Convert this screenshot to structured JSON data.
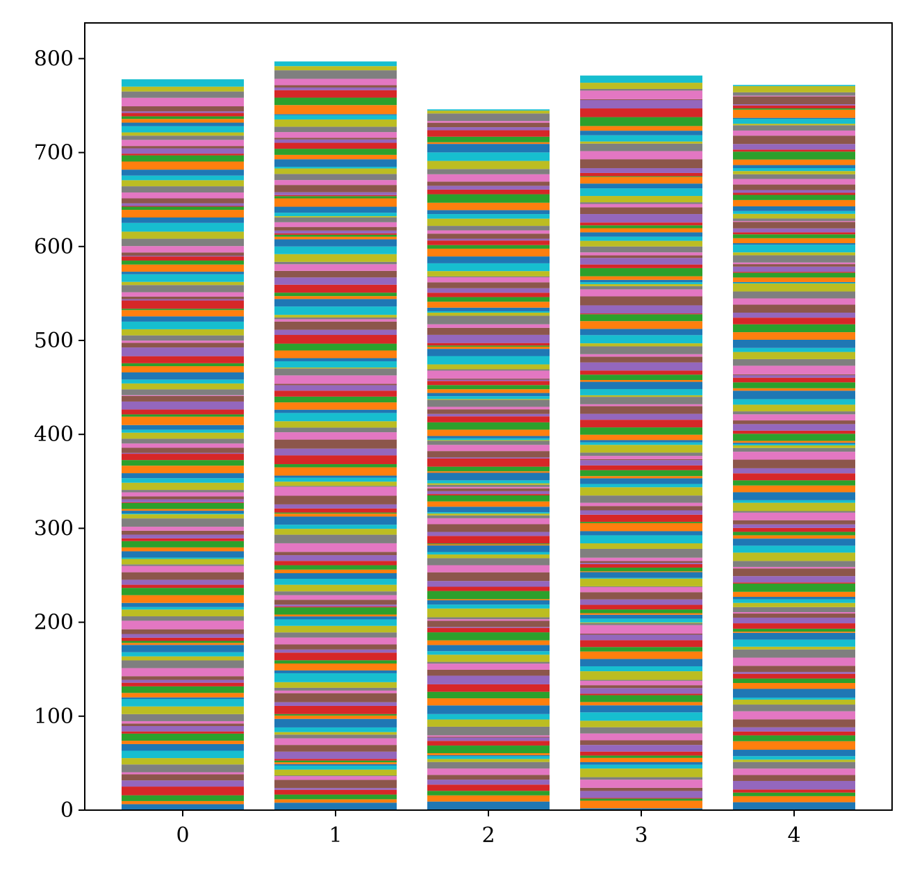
{
  "chart_data": {
    "type": "bar",
    "stacked": true,
    "title": "",
    "xlabel": "",
    "ylabel": "",
    "categories": [
      "0",
      "1",
      "2",
      "3",
      "4"
    ],
    "totals": [
      778,
      797,
      746,
      782,
      772
    ],
    "ylim": [
      0,
      838
    ],
    "yticks": [
      0,
      100,
      200,
      300,
      400,
      500,
      600,
      700,
      800
    ],
    "xticks": [
      0,
      1,
      2,
      3,
      4
    ],
    "grid": false,
    "legend": "none",
    "segments_per_bar": 150,
    "palette": [
      "#1f77b4",
      "#ff7f0e",
      "#2ca02c",
      "#d62728",
      "#9467bd",
      "#8c564b",
      "#e377c2",
      "#7f7f7f",
      "#bcbd22",
      "#17becf"
    ]
  }
}
